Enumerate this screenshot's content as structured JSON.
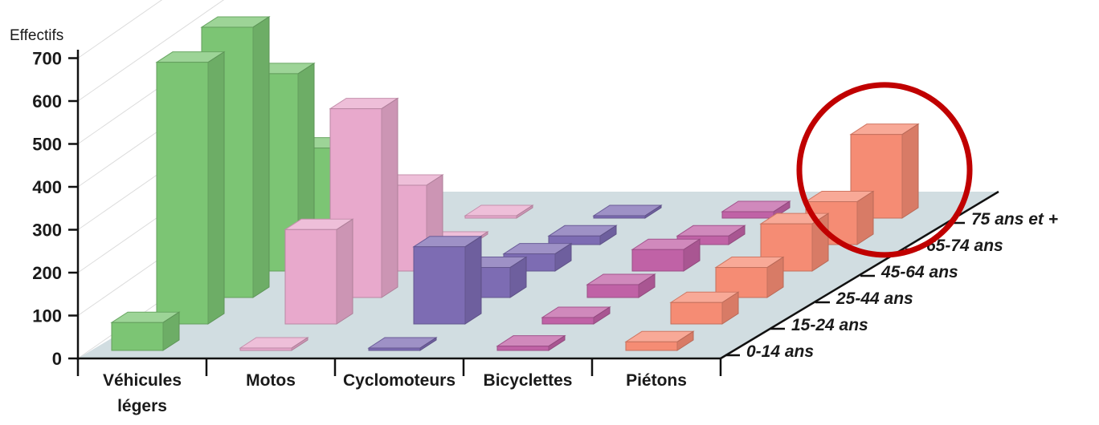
{
  "chart_data": {
    "type": "bar",
    "subtype": "3d-bar",
    "ylabel": "Effectifs",
    "ylim": [
      0,
      700
    ],
    "yticks": [
      "0",
      "100",
      "200",
      "300",
      "400",
      "500",
      "600",
      "700"
    ],
    "categories": [
      {
        "line1": "Véhicules",
        "line2": "légers"
      },
      {
        "line1": "Motos",
        "line2": ""
      },
      {
        "line1": "Cyclomoteurs",
        "line2": ""
      },
      {
        "line1": "Bicyclettes",
        "line2": ""
      },
      {
        "line1": "Piétons",
        "line2": ""
      }
    ],
    "series": [
      {
        "name": "0-14 ans",
        "values": [
          65,
          5,
          5,
          10,
          20
        ]
      },
      {
        "name": "15-24 ans",
        "values": [
          610,
          220,
          180,
          15,
          50
        ]
      },
      {
        "name": "25-44 ans",
        "values": [
          630,
          440,
          70,
          30,
          70
        ]
      },
      {
        "name": "45-64 ans",
        "values": [
          460,
          200,
          40,
          50,
          110
        ]
      },
      {
        "name": "65-74 ans",
        "values": [
          225,
          5,
          20,
          20,
          100
        ]
      },
      {
        "name": "75 ans et +",
        "values": [
          0,
          5,
          5,
          15,
          195
        ]
      }
    ],
    "colors": {
      "Véhicules légers": "#7cc574",
      "Motos": "#e8a9cc",
      "Cyclomoteurs": "#7d6cb3",
      "Bicyclettes": "#c062a6",
      "Piétons": "#f58c74"
    },
    "highlight": {
      "series": "75 ans et +",
      "category": "Piétons",
      "color": "#c00000"
    },
    "legend": "none",
    "grid": true
  }
}
